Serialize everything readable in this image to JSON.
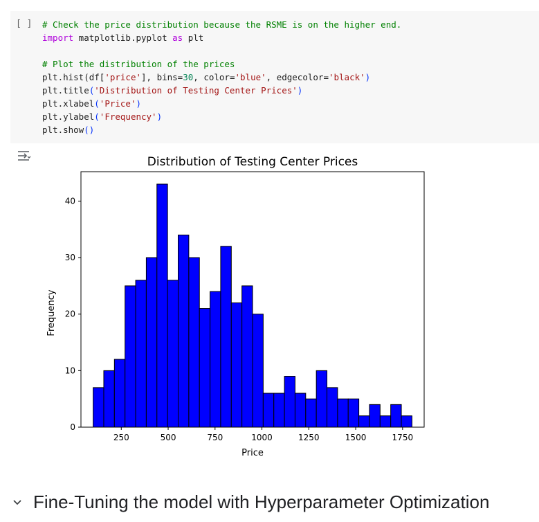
{
  "cell": {
    "run_label": "[ ]",
    "code_lines": [
      [
        {
          "t": "# Check the price distribution because the RSME is on the higher end.",
          "c": "c"
        }
      ],
      [
        {
          "t": "import",
          "c": "k"
        },
        {
          "t": " matplotlib.pyplot "
        },
        {
          "t": "as",
          "c": "k"
        },
        {
          "t": " plt"
        }
      ],
      [
        {
          "t": ""
        }
      ],
      [
        {
          "t": "# Plot the distribution of the prices",
          "c": "c"
        }
      ],
      [
        {
          "t": "plt.hist(df["
        },
        {
          "t": "'price'",
          "c": "s"
        },
        {
          "t": "], bins="
        },
        {
          "t": "30",
          "c": "n"
        },
        {
          "t": ", color="
        },
        {
          "t": "'blue'",
          "c": "s"
        },
        {
          "t": ", edgecolor="
        },
        {
          "t": "'black'",
          "c": "s"
        },
        {
          "t": ")",
          "c": "p"
        }
      ],
      [
        {
          "t": "plt.title"
        },
        {
          "t": "(",
          "c": "p"
        },
        {
          "t": "'Distribution of Testing Center Prices'",
          "c": "s"
        },
        {
          "t": ")",
          "c": "p"
        }
      ],
      [
        {
          "t": "plt.xlabel"
        },
        {
          "t": "(",
          "c": "p"
        },
        {
          "t": "'Price'",
          "c": "s"
        },
        {
          "t": ")",
          "c": "p"
        }
      ],
      [
        {
          "t": "plt.ylabel"
        },
        {
          "t": "(",
          "c": "p"
        },
        {
          "t": "'Frequency'",
          "c": "s"
        },
        {
          "t": ")",
          "c": "p"
        }
      ],
      [
        {
          "t": "plt.show"
        },
        {
          "t": "()",
          "c": "p"
        }
      ]
    ]
  },
  "output_icon": "output-toggle-icon",
  "chart_data": {
    "type": "bar",
    "title": "Distribution of Testing Center Prices",
    "xlabel": "Price",
    "ylabel": "Frequency",
    "xlim": [
      35,
      1865
    ],
    "ylim": [
      0,
      45.2
    ],
    "bin_start": 100,
    "bin_width": 56.67,
    "values": [
      7,
      10,
      12,
      25,
      26,
      30,
      43,
      26,
      34,
      30,
      21,
      24,
      32,
      22,
      25,
      20,
      6,
      6,
      9,
      6,
      5,
      10,
      7,
      5,
      5,
      2,
      4,
      2,
      4,
      2
    ],
    "xticks": [
      250,
      500,
      750,
      1000,
      1250,
      1500,
      1750
    ],
    "yticks": [
      0,
      10,
      20,
      30,
      40
    ],
    "bar_color": "#0000ff",
    "edge_color": "#000000",
    "grid": false,
    "legend": "none"
  },
  "section": {
    "title": "Fine-Tuning the model with Hyperparameter Optimization",
    "icon": "chevron-down-icon"
  }
}
